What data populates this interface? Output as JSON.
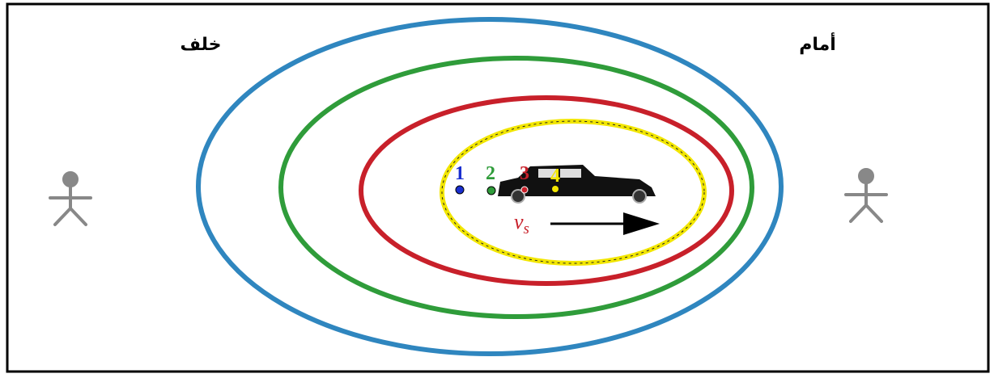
{
  "labels": {
    "behind": "خلف",
    "front": "أمام"
  },
  "sources": [
    {
      "label": "1"
    },
    {
      "label": "2"
    },
    {
      "label": "3"
    },
    {
      "label": "4"
    }
  ],
  "velocity": {
    "symbol": "v",
    "subscript": "s"
  }
}
